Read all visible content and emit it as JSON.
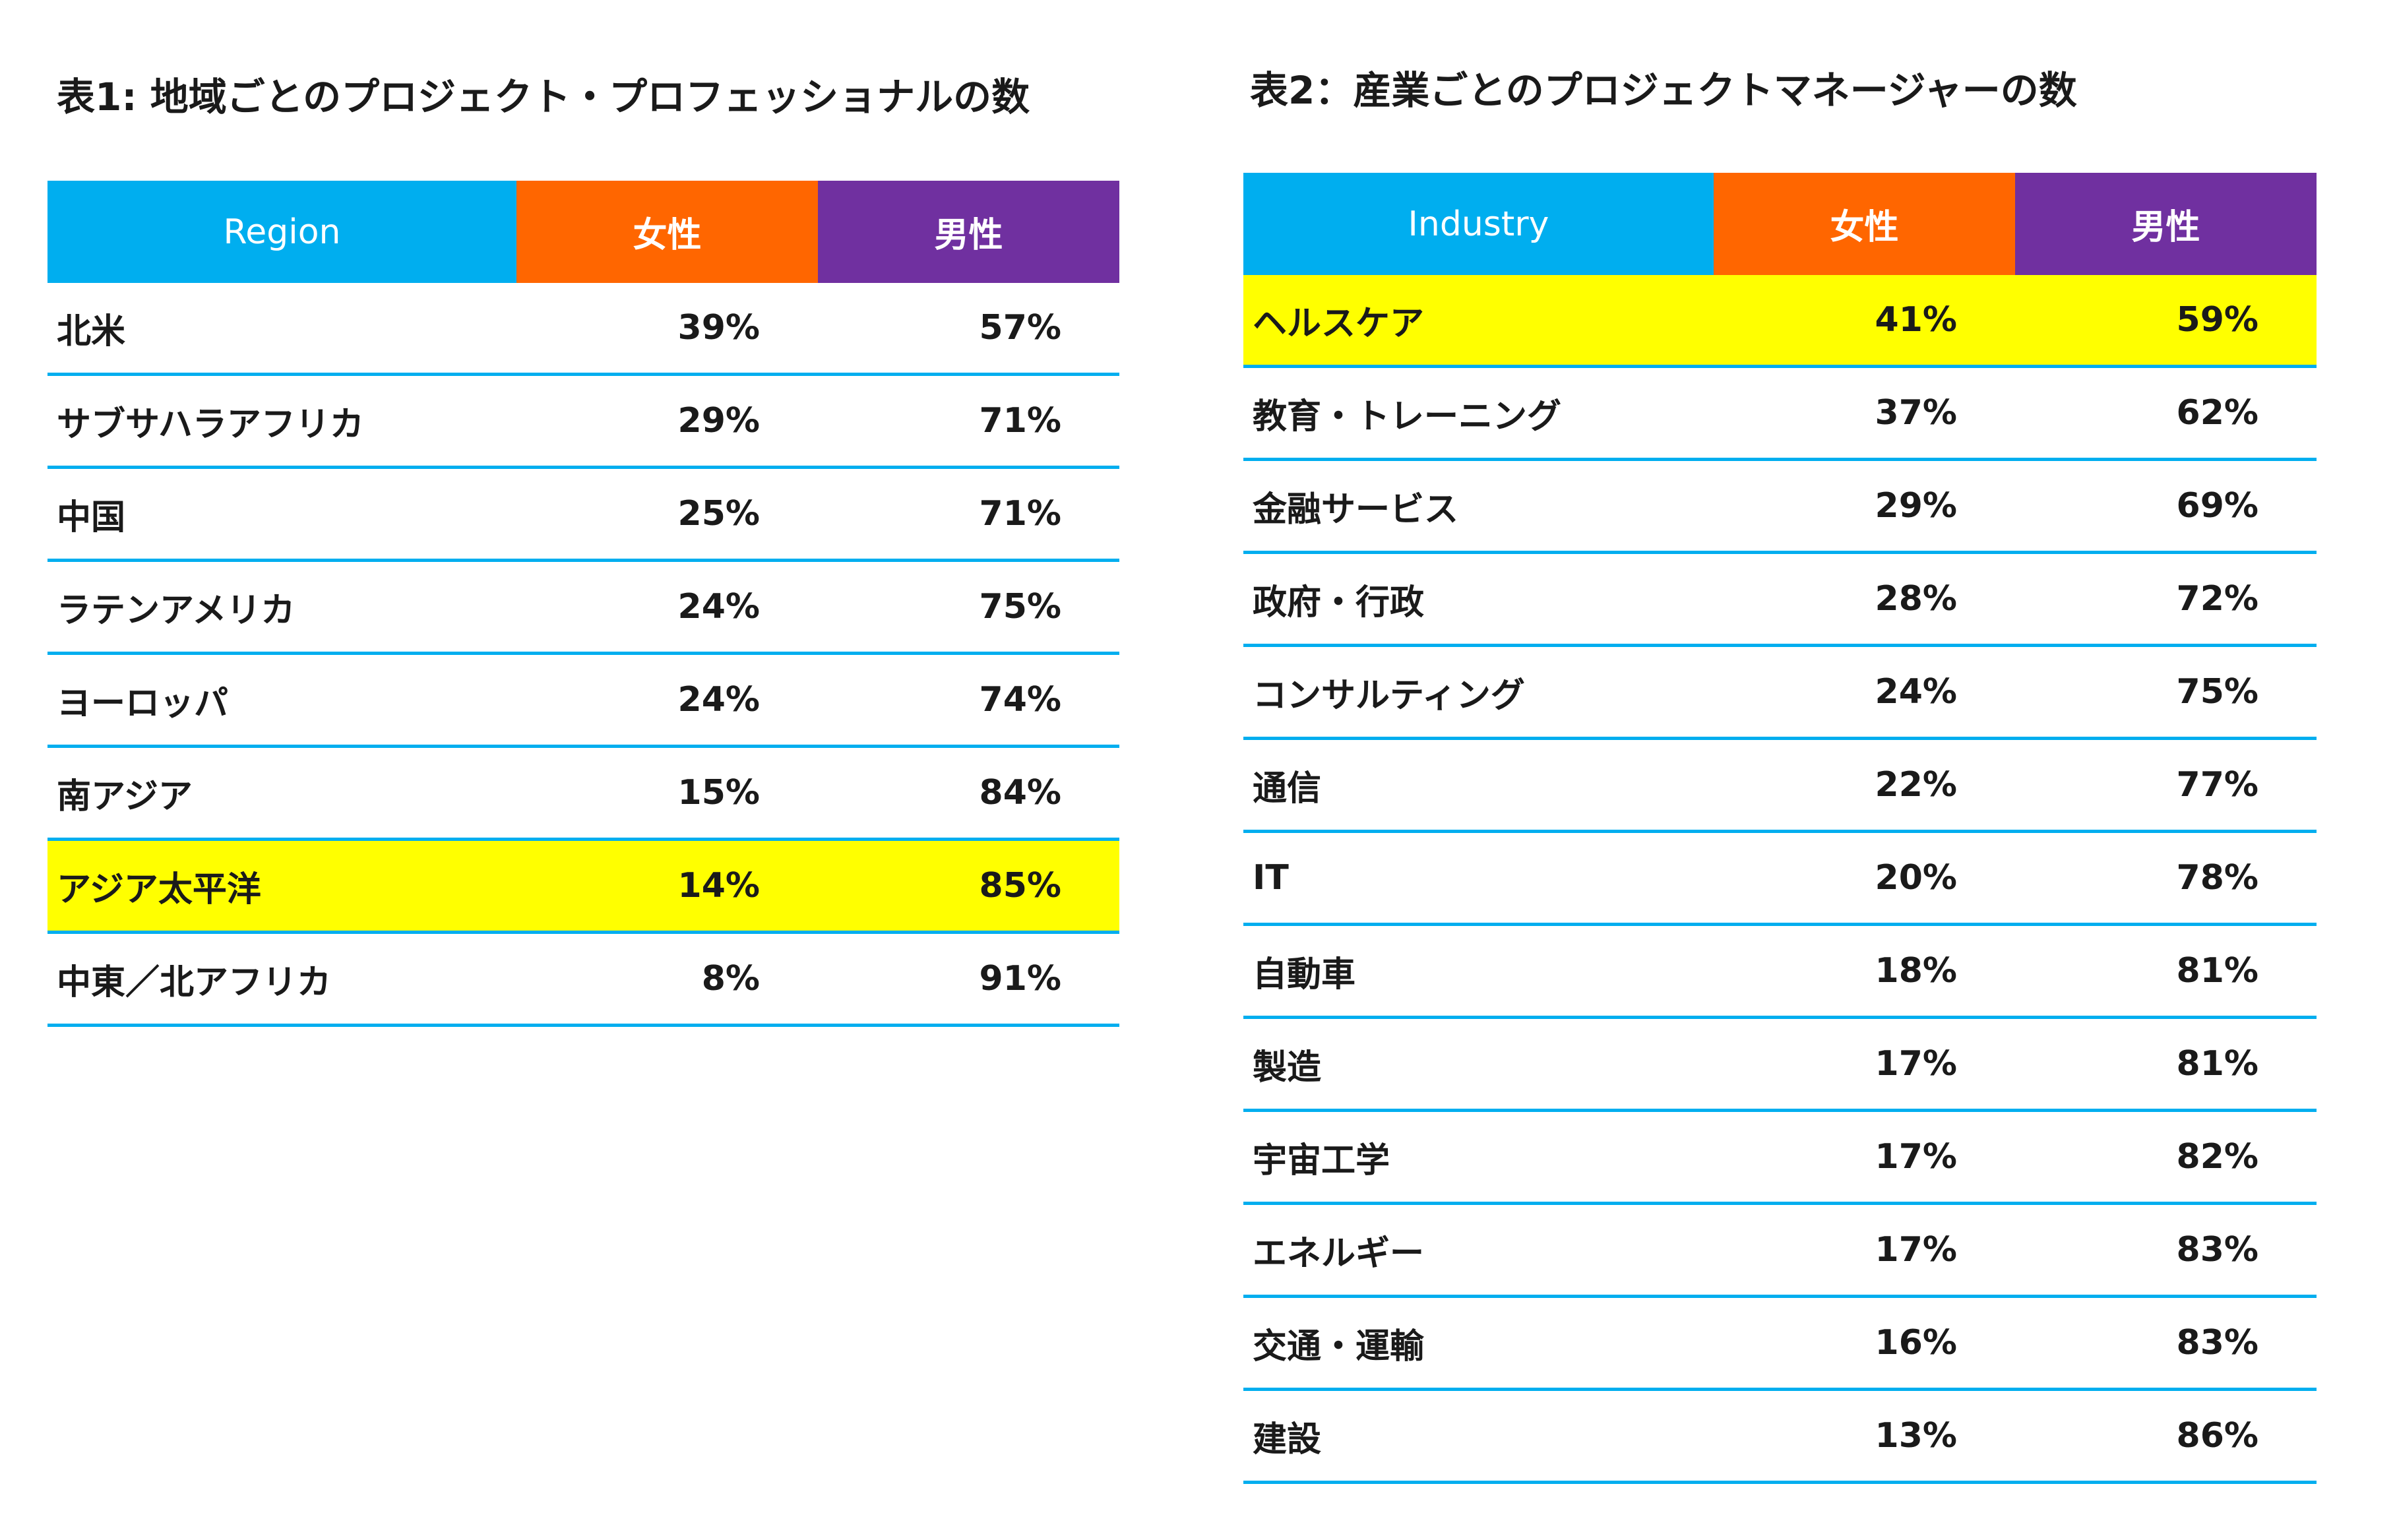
{
  "chart_data": [
    {
      "type": "table",
      "title": "表1: 地域ごとのプロジェクト・プロフェッショナルの数",
      "columns": [
        "Region",
        "女性",
        "男性"
      ],
      "highlight_color": "#ffff00",
      "header_colors": [
        "#00aeef",
        "#ff6600",
        "#7030a0"
      ],
      "rows": [
        {
          "category": "北米",
          "female": "39%",
          "male": "57%",
          "highlight": false
        },
        {
          "category": "サブサハラアフリカ",
          "female": "29%",
          "male": "71%",
          "highlight": false
        },
        {
          "category": "中国",
          "female": "25%",
          "male": "71%",
          "highlight": false
        },
        {
          "category": "ラテンアメリカ",
          "female": "24%",
          "male": "75%",
          "highlight": false
        },
        {
          "category": "ヨーロッパ",
          "female": "24%",
          "male": "74%",
          "highlight": false
        },
        {
          "category": "南アジア",
          "female": "15%",
          "male": "84%",
          "highlight": false
        },
        {
          "category": "アジア太平洋",
          "female": "14%",
          "male": "85%",
          "highlight": true
        },
        {
          "category": "中東／北アフリカ",
          "female": "8%",
          "male": "91%",
          "highlight": false
        }
      ]
    },
    {
      "type": "table",
      "title": "表2：産業ごとのプロジェクトマネージャーの数",
      "columns": [
        "Industry",
        "女性",
        "男性"
      ],
      "highlight_color": "#ffff00",
      "header_colors": [
        "#00aeef",
        "#ff6600",
        "#7030a0"
      ],
      "rows": [
        {
          "category": "ヘルスケア",
          "female": "41%",
          "male": "59%",
          "highlight": true
        },
        {
          "category": "教育・トレーニング",
          "female": "37%",
          "male": "62%",
          "highlight": false
        },
        {
          "category": "金融サービス",
          "female": "29%",
          "male": "69%",
          "highlight": false
        },
        {
          "category": "政府・行政",
          "female": "28%",
          "male": "72%",
          "highlight": false
        },
        {
          "category": "コンサルティング",
          "female": "24%",
          "male": "75%",
          "highlight": false
        },
        {
          "category": "通信",
          "female": "22%",
          "male": "77%",
          "highlight": false
        },
        {
          "category": "IT",
          "female": "20%",
          "male": "78%",
          "highlight": false
        },
        {
          "category": "自動車",
          "female": "18%",
          "male": "81%",
          "highlight": false
        },
        {
          "category": "製造",
          "female": "17%",
          "male": "81%",
          "highlight": false
        },
        {
          "category": "宇宙工学",
          "female": "17%",
          "male": "82%",
          "highlight": false
        },
        {
          "category": "エネルギー",
          "female": "17%",
          "male": "83%",
          "highlight": false
        },
        {
          "category": "交通・運輸",
          "female": "16%",
          "male": "83%",
          "highlight": false
        },
        {
          "category": "建設",
          "female": "13%",
          "male": "86%",
          "highlight": false
        }
      ]
    }
  ]
}
